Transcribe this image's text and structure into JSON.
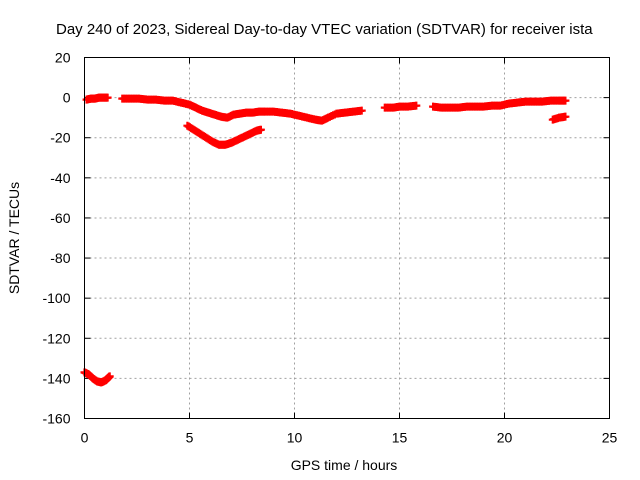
{
  "chart_data": {
    "type": "scatter",
    "title": "Day 240 of 2023, Sidereal Day-to-day VTEC variation (SDTVAR) for receiver ista",
    "xlabel": "GPS time / hours",
    "ylabel": "SDTVAR / TECUs",
    "xlim": [
      0,
      25
    ],
    "ylim": [
      -160,
      20
    ],
    "xticks": [
      0,
      5,
      10,
      15,
      20,
      25
    ],
    "yticks": [
      20,
      0,
      -20,
      -40,
      -60,
      -80,
      -100,
      -120,
      -140,
      -160
    ],
    "grid": true,
    "marker": "+",
    "color": "#ff0000",
    "series": [
      {
        "points": [
          [
            0.1,
            -1
          ],
          [
            0.3,
            -0.5
          ],
          [
            0.5,
            -0.5
          ],
          [
            0.7,
            0
          ],
          [
            0.9,
            0
          ],
          [
            1.1,
            0
          ],
          [
            1.8,
            -0.5
          ],
          [
            2.2,
            -0.5
          ],
          [
            2.6,
            -0.5
          ],
          [
            3.0,
            -1
          ],
          [
            3.4,
            -1
          ],
          [
            3.8,
            -1.5
          ],
          [
            4.2,
            -1.5
          ],
          [
            4.6,
            -2.5
          ],
          [
            5.0,
            -3.5
          ],
          [
            5.3,
            -5
          ],
          [
            5.6,
            -6.5
          ],
          [
            5.9,
            -7.5
          ],
          [
            6.2,
            -8.5
          ],
          [
            6.5,
            -9.5
          ],
          [
            6.8,
            -10
          ],
          [
            7.1,
            -8.5
          ],
          [
            7.4,
            -8
          ],
          [
            7.7,
            -7.5
          ],
          [
            8.0,
            -7.5
          ],
          [
            8.3,
            -7
          ],
          [
            8.6,
            -7
          ],
          [
            9.0,
            -7
          ],
          [
            9.4,
            -7.5
          ],
          [
            9.8,
            -8
          ],
          [
            10.2,
            -9
          ],
          [
            10.6,
            -10
          ],
          [
            11.0,
            -11
          ],
          [
            11.3,
            -11.5
          ],
          [
            11.6,
            -10
          ],
          [
            12.0,
            -8
          ],
          [
            12.4,
            -7.5
          ],
          [
            12.8,
            -7
          ],
          [
            13.2,
            -6.5
          ],
          [
            14.3,
            -5
          ],
          [
            14.7,
            -5
          ],
          [
            15.0,
            -4.5
          ],
          [
            15.4,
            -4.5
          ],
          [
            15.8,
            -4
          ],
          [
            16.6,
            -4.5
          ],
          [
            17.0,
            -5
          ],
          [
            17.4,
            -5
          ],
          [
            17.8,
            -5
          ],
          [
            18.2,
            -4.5
          ],
          [
            18.6,
            -4.5
          ],
          [
            19.0,
            -4.5
          ],
          [
            19.4,
            -4
          ],
          [
            19.8,
            -4
          ],
          [
            20.2,
            -3
          ],
          [
            20.6,
            -2.5
          ],
          [
            21.0,
            -2
          ],
          [
            21.4,
            -2
          ],
          [
            21.8,
            -2
          ],
          [
            22.2,
            -1.5
          ],
          [
            22.6,
            -1.5
          ],
          [
            22.9,
            -1.5
          ]
        ]
      },
      {
        "points": [
          [
            4.9,
            -14
          ],
          [
            5.2,
            -16
          ],
          [
            5.5,
            -18
          ],
          [
            5.8,
            -20
          ],
          [
            6.1,
            -22
          ],
          [
            6.4,
            -23.5
          ],
          [
            6.7,
            -23.5
          ],
          [
            7.0,
            -22.5
          ],
          [
            7.3,
            -21
          ],
          [
            7.6,
            -19.5
          ],
          [
            7.9,
            -18
          ],
          [
            8.2,
            -16.5
          ],
          [
            8.4,
            -16
          ]
        ]
      },
      {
        "points": [
          [
            22.3,
            -11
          ],
          [
            22.6,
            -10
          ],
          [
            22.9,
            -9.5
          ]
        ]
      },
      {
        "points": [
          [
            0.0,
            -137
          ],
          [
            0.2,
            -138
          ],
          [
            0.4,
            -140
          ],
          [
            0.6,
            -141.5
          ],
          [
            0.8,
            -142
          ],
          [
            1.0,
            -141
          ],
          [
            1.1,
            -140
          ],
          [
            1.2,
            -139
          ]
        ]
      }
    ]
  }
}
